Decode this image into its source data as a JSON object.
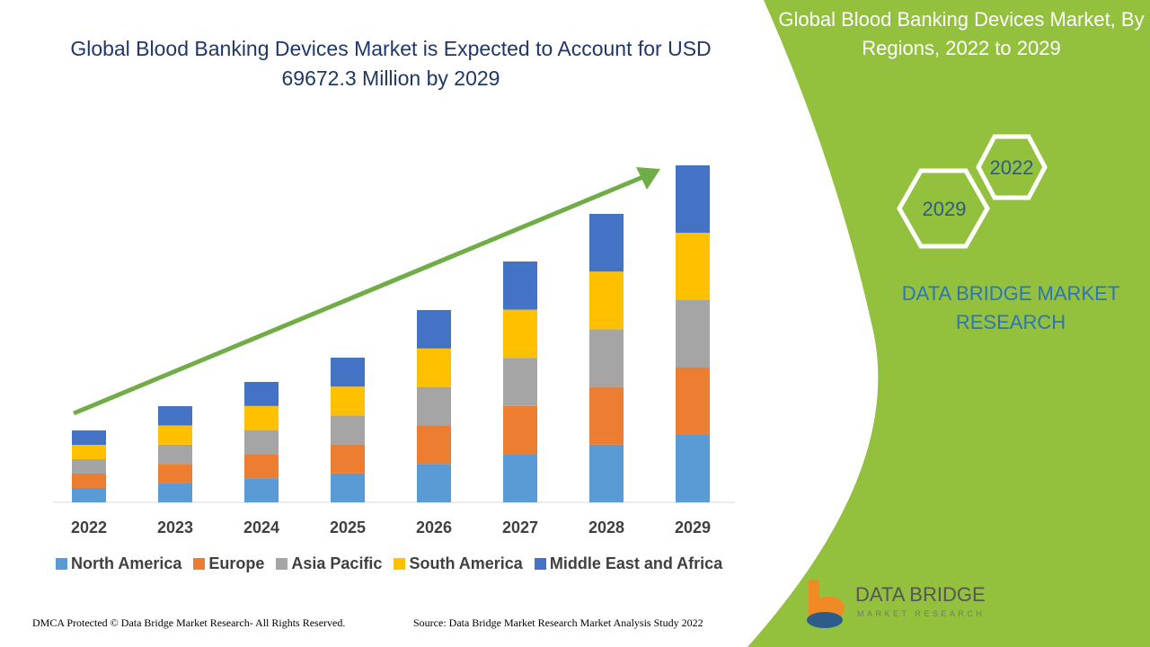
{
  "chart_data": {
    "type": "stacked_bar",
    "title": "Global Blood Banking Devices Market is Expected to Account for USD 69672.3 Million by 2029",
    "categories": [
      "2022",
      "2023",
      "2024",
      "2025",
      "2026",
      "2027",
      "2028",
      "2029"
    ],
    "series": [
      {
        "name": "North America",
        "color": "#5b9bd5",
        "values": [
          16,
          21.4,
          26.8,
          32.2,
          42.8,
          53.6,
          64.2,
          75
        ]
      },
      {
        "name": "Europe",
        "color": "#ed7d31",
        "values": [
          16,
          21.4,
          26.8,
          32.2,
          42.8,
          53.6,
          64.2,
          75
        ]
      },
      {
        "name": "Asia Pacific",
        "color": "#a5a5a5",
        "values": [
          16,
          21.4,
          26.8,
          32.2,
          42.8,
          53.6,
          64.2,
          75
        ]
      },
      {
        "name": "South America",
        "color": "#ffc000",
        "values": [
          16,
          21.4,
          26.8,
          32.2,
          42.8,
          53.6,
          64.2,
          75
        ]
      },
      {
        "name": "Middle East and Africa",
        "color": "#4472c4",
        "values": [
          16,
          21.4,
          26.8,
          32.2,
          42.8,
          53.6,
          64.2,
          75
        ]
      }
    ]
  },
  "panel": {
    "title": "Global Blood Banking Devices Market, By Regions, 2022 to 2029",
    "hex_top": "2022",
    "hex_bottom": "2029",
    "brand": "DATA BRIDGE MARKET RESEARCH"
  },
  "logo": {
    "name": "DATA BRIDGE",
    "tagline": "MARKET RESEARCH"
  },
  "footer": {
    "dmca": "DMCA Protected © Data Bridge Market Research- All Rights Reserved.",
    "source": "Source: Data Bridge Market Research Market Analysis Study 2022"
  }
}
